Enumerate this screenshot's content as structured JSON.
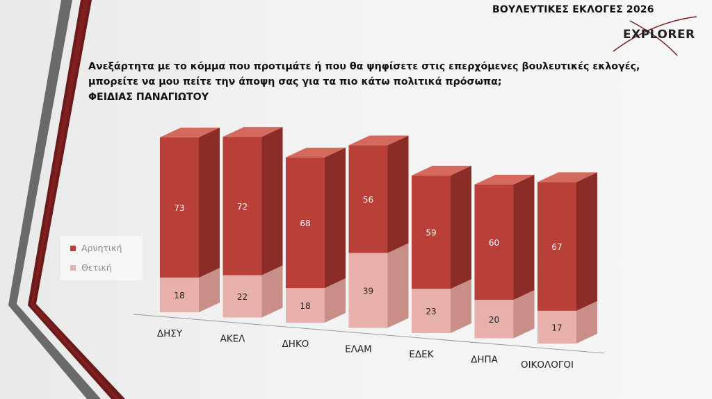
{
  "slide": {
    "title": "ΒΟΥΛΕΥΤΙΚΕΣ ΕΚΛΟΓΕΣ 2026",
    "logo_text": "EXPLORER",
    "question_lines": [
      "Ανεξάρτητα με το κόμμα που προτιμάτε ή που θα ψηφίσετε στις επερχόμενες βουλευτικές εκλογές,",
      "μπορείτε να μου πείτε την άποψη σας για τα πιο κάτω πολιτικά πρόσωπα;",
      "ΦΕΙΔΙΑΣ ΠΑΝΑΓΙΩΤΟΥ"
    ]
  },
  "colors": {
    "negative_front": "#b84038",
    "negative_side": "#8a2d28",
    "negative_top": "#d46a5e",
    "positive_front": "#e8b0ab",
    "positive_side": "#c98e88",
    "positive_top": "#f0c6c1",
    "accent_dark": "#5e1515",
    "accent_gray": "#707070"
  },
  "chart_data": {
    "type": "bar",
    "stacked": true,
    "style": "3d-column",
    "categories": [
      "ΔΗΣΥ",
      "ΑΚΕΛ",
      "ΔΗΚΟ",
      "ΕΛΑΜ",
      "ΕΔΕΚ",
      "ΔΗΠΑ",
      "ΟΙΚΟΛΟΓΟΙ"
    ],
    "series": [
      {
        "name": "Θετική",
        "values": [
          18,
          22,
          18,
          39,
          23,
          20,
          17
        ]
      },
      {
        "name": "Αρνητική",
        "values": [
          73,
          72,
          68,
          56,
          59,
          60,
          67
        ]
      }
    ],
    "legend": {
      "placement": "left",
      "entries": [
        "Αρνητική",
        "Θετική"
      ]
    },
    "data_labels": true,
    "ylim": [
      0,
      100
    ],
    "grid": false
  }
}
